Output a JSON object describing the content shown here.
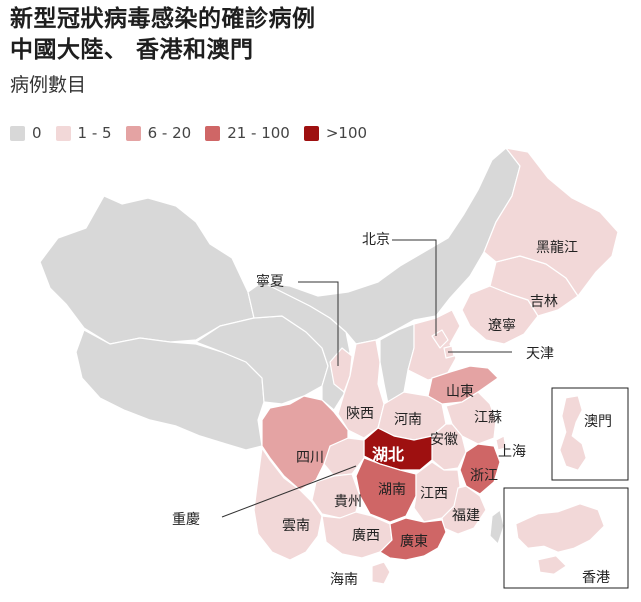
{
  "title_lines": [
    "新型冠狀病毒感染的確診病例",
    "中國大陸、 香港和澳門"
  ],
  "subtitle": "病例數目",
  "colors": {
    "none": "#d8d8d8",
    "c1_5": "#f2d8d8",
    "c6_20": "#e4a3a3",
    "c21_100": "#cf6666",
    "c100p": "#9e1010",
    "border": "#ffffff",
    "leader": "#333333"
  },
  "legend": [
    {
      "label": "0",
      "color": "#d8d8d8"
    },
    {
      "label": "1 - 5",
      "color": "#f2d8d8"
    },
    {
      "label": "6 -  20",
      "color": "#e4a3a3"
    },
    {
      "label": "21 - 100",
      "color": "#cf6666"
    },
    {
      "label": ">100",
      "color": "#9e1010"
    }
  ],
  "labels": {
    "heilongjiang": "黑龍江",
    "jilin": "吉林",
    "liaoning": "遼寧",
    "beijing": "北京",
    "tianjin": "天津",
    "ningxia": "寧夏",
    "shandong": "山東",
    "shaanxi": "陝西",
    "henan": "河南",
    "jiangsu": "江蘇",
    "anhui": "安徽",
    "shanghai": "上海",
    "hubei": "湖北",
    "sichuan": "四川",
    "zhejiang": "浙江",
    "hunan": "湖南",
    "jiangxi": "江西",
    "guizhou": "貴州",
    "chongqing": "重慶",
    "fujian": "福建",
    "yunnan": "雲南",
    "guangxi": "廣西",
    "guangdong": "廣東",
    "hainan": "海南",
    "macau": "澳門",
    "hongkong": "香港"
  }
}
